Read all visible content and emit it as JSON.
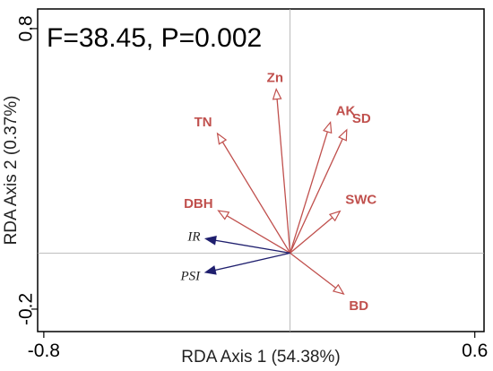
{
  "chart_data": {
    "type": "biplot",
    "annotation": "F=38.45, P=0.002",
    "xlabel": "RDA Axis 1 (54.38%)",
    "ylabel": "RDA Axis 2 (0.37%)",
    "x_ticks": [
      {
        "value": -0.8,
        "label": "-0.8"
      },
      {
        "value": 0.6,
        "label": "0.6"
      }
    ],
    "y_ticks": [
      {
        "value": 0.8,
        "label": "0.8"
      },
      {
        "value": -0.2,
        "label": "-0.2"
      }
    ],
    "xlim": [
      -0.82,
      0.63
    ],
    "ylim": [
      -0.28,
      0.87
    ],
    "explanatory_vectors": [
      {
        "name": "Zn",
        "x": -0.045,
        "y": 0.584
      },
      {
        "name": "TN",
        "x": -0.236,
        "y": 0.426
      },
      {
        "name": "AK",
        "x": 0.131,
        "y": 0.466
      },
      {
        "name": "SD",
        "x": 0.184,
        "y": 0.439
      },
      {
        "name": "SWC",
        "x": 0.162,
        "y": 0.149
      },
      {
        "name": "DBH",
        "x": -0.233,
        "y": 0.151
      },
      {
        "name": "BD",
        "x": 0.174,
        "y": -0.146
      }
    ],
    "response_vectors": [
      {
        "name": "IR",
        "x": -0.274,
        "y": 0.051
      },
      {
        "name": "PSI",
        "x": -0.275,
        "y": -0.069
      }
    ],
    "grid": false,
    "colors": {
      "explanatory": "#c0504d",
      "response": "#1f1f6e",
      "reference_lines": "#aaaaaa",
      "frame": "#000000"
    }
  }
}
